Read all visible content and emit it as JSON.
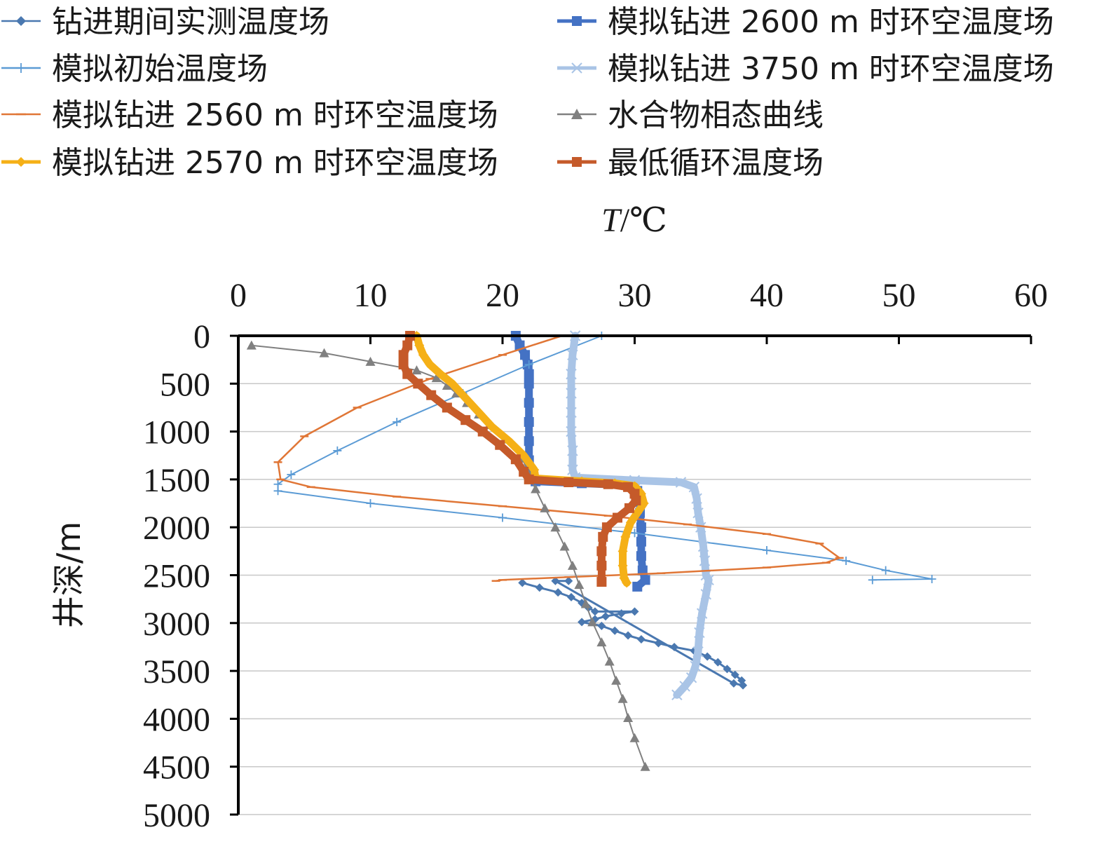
{
  "chart_data": {
    "type": "line",
    "title": "",
    "xlabel": "T/℃",
    "xlabel_parts": {
      "italic": "T",
      "rest": "/℃"
    },
    "ylabel": "井深/m",
    "xlim": [
      0,
      60
    ],
    "ylim": [
      0,
      5000
    ],
    "y_inverted": true,
    "x_axis_position": "top",
    "grid": "horizontal",
    "x_ticks": [
      "0",
      "10",
      "20",
      "30",
      "40",
      "50",
      "60"
    ],
    "y_ticks": [
      "0",
      "500",
      "1000",
      "1500",
      "2000",
      "2500",
      "3000",
      "3500",
      "4000",
      "4500",
      "5000"
    ],
    "legend_position": "top",
    "series": [
      {
        "name": "钻进期间实测温度场",
        "color": "#4a78b0",
        "marker": "diamond",
        "points": [
          [
            21.5,
            2580
          ],
          [
            22.8,
            2630
          ],
          [
            24.2,
            2680
          ],
          [
            25.2,
            2730
          ],
          [
            26.0,
            2790
          ],
          [
            26.5,
            2840
          ],
          [
            27.0,
            2880
          ],
          [
            30.0,
            2880
          ],
          [
            29.0,
            2900
          ],
          [
            27.8,
            2930
          ],
          [
            27.0,
            2960
          ],
          [
            26.0,
            2990
          ],
          [
            27.5,
            3030
          ],
          [
            28.5,
            3080
          ],
          [
            29.5,
            3130
          ],
          [
            30.5,
            3170
          ],
          [
            31.8,
            3210
          ],
          [
            33.0,
            3250
          ],
          [
            34.5,
            3290
          ],
          [
            35.5,
            3350
          ],
          [
            36.3,
            3410
          ],
          [
            37.0,
            3480
          ],
          [
            37.6,
            3540
          ],
          [
            38.1,
            3600
          ],
          [
            38.2,
            3650
          ],
          [
            37.5,
            3630
          ],
          [
            24.0,
            2560
          ],
          [
            25.0,
            2560
          ]
        ]
      },
      {
        "name": "模拟钻进 2600 m 时环空温度场",
        "color": "#4472c4",
        "marker": "square",
        "points": [
          [
            21.0,
            0
          ],
          [
            21.3,
            100
          ],
          [
            21.7,
            200
          ],
          [
            21.9,
            300
          ],
          [
            22.0,
            400
          ],
          [
            22.0,
            500
          ],
          [
            22.0,
            700
          ],
          [
            22.0,
            900
          ],
          [
            22.0,
            1100
          ],
          [
            22.0,
            1300
          ],
          [
            22.0,
            1450
          ],
          [
            22.5,
            1520
          ],
          [
            26.0,
            1540
          ],
          [
            29.5,
            1560
          ],
          [
            30.2,
            1620
          ],
          [
            30.4,
            1700
          ],
          [
            30.4,
            1850
          ],
          [
            30.5,
            2000
          ],
          [
            30.5,
            2150
          ],
          [
            30.5,
            2300
          ],
          [
            30.6,
            2450
          ],
          [
            30.8,
            2550
          ],
          [
            30.2,
            2620
          ]
        ]
      },
      {
        "name": "模拟初始温度场",
        "color": "#5b9bd5",
        "marker": "plus",
        "points": [
          [
            27.5,
            0
          ],
          [
            22.0,
            300
          ],
          [
            17.0,
            600
          ],
          [
            12.0,
            900
          ],
          [
            7.5,
            1200
          ],
          [
            4.0,
            1450
          ],
          [
            3.0,
            1550
          ],
          [
            3.0,
            1620
          ],
          [
            10.0,
            1750
          ],
          [
            20.0,
            1900
          ],
          [
            30.0,
            2060
          ],
          [
            40.0,
            2240
          ],
          [
            46.0,
            2350
          ],
          [
            49.0,
            2450
          ],
          [
            52.5,
            2540
          ],
          [
            48.0,
            2550
          ]
        ]
      },
      {
        "name": "模拟钻进 3750 m 时环空温度场",
        "color": "#a9c4e6",
        "marker": "cross",
        "points": [
          [
            25.5,
            0
          ],
          [
            25.3,
            200
          ],
          [
            25.2,
            400
          ],
          [
            25.2,
            600
          ],
          [
            25.2,
            800
          ],
          [
            25.2,
            1000
          ],
          [
            25.3,
            1200
          ],
          [
            25.3,
            1400
          ],
          [
            25.5,
            1480
          ],
          [
            30.0,
            1510
          ],
          [
            33.5,
            1530
          ],
          [
            34.5,
            1580
          ],
          [
            34.7,
            1700
          ],
          [
            34.8,
            1850
          ],
          [
            35.0,
            2000
          ],
          [
            35.2,
            2200
          ],
          [
            35.3,
            2350
          ],
          [
            35.4,
            2500
          ],
          [
            35.6,
            2550
          ],
          [
            35.4,
            2700
          ],
          [
            35.1,
            2900
          ],
          [
            34.9,
            3100
          ],
          [
            34.8,
            3300
          ],
          [
            34.6,
            3450
          ],
          [
            34.3,
            3570
          ],
          [
            33.8,
            3660
          ],
          [
            33.2,
            3750
          ]
        ]
      },
      {
        "name": "模拟钻进 2560 m 时环空温度场",
        "color": "#e07636",
        "marker": "dash",
        "points": [
          [
            24.5,
            0
          ],
          [
            20.0,
            200
          ],
          [
            14.5,
            450
          ],
          [
            9.0,
            750
          ],
          [
            5.0,
            1050
          ],
          [
            3.0,
            1320
          ],
          [
            3.2,
            1500
          ],
          [
            5.5,
            1580
          ],
          [
            12.0,
            1680
          ],
          [
            20.0,
            1780
          ],
          [
            28.0,
            1880
          ],
          [
            34.0,
            1970
          ],
          [
            40.0,
            2070
          ],
          [
            44.0,
            2170
          ],
          [
            45.5,
            2320
          ],
          [
            44.5,
            2370
          ],
          [
            40.0,
            2420
          ],
          [
            32.0,
            2480
          ],
          [
            25.0,
            2520
          ],
          [
            20.0,
            2550
          ],
          [
            19.5,
            2560
          ]
        ]
      },
      {
        "name": "水合物相态曲线",
        "color": "#808080",
        "marker": "triangle",
        "points": [
          [
            1.0,
            100
          ],
          [
            6.5,
            180
          ],
          [
            10.0,
            270
          ],
          [
            13.5,
            360
          ],
          [
            15.0,
            440
          ],
          [
            15.8,
            520
          ],
          [
            16.5,
            600
          ],
          [
            17.3,
            700
          ],
          [
            18.2,
            820
          ],
          [
            19.0,
            930
          ],
          [
            20.2,
            1080
          ],
          [
            21.5,
            1280
          ],
          [
            22.0,
            1450
          ],
          [
            22.5,
            1600
          ],
          [
            23.2,
            1800
          ],
          [
            24.0,
            2000
          ],
          [
            24.7,
            2200
          ],
          [
            25.3,
            2400
          ],
          [
            25.8,
            2600
          ],
          [
            26.3,
            2800
          ],
          [
            26.8,
            2990
          ],
          [
            27.5,
            3200
          ],
          [
            28.1,
            3400
          ],
          [
            28.6,
            3600
          ],
          [
            29.1,
            3790
          ],
          [
            29.5,
            3990
          ],
          [
            30.0,
            4200
          ],
          [
            30.8,
            4500
          ]
        ]
      },
      {
        "name": "模拟钻进 2570 m 时环空温度场",
        "color": "#f5b017",
        "marker": "diamond",
        "points": [
          [
            13.5,
            0
          ],
          [
            13.7,
            100
          ],
          [
            14.0,
            200
          ],
          [
            14.5,
            300
          ],
          [
            15.3,
            400
          ],
          [
            16.2,
            500
          ],
          [
            17.2,
            650
          ],
          [
            18.2,
            800
          ],
          [
            19.2,
            950
          ],
          [
            20.5,
            1100
          ],
          [
            21.6,
            1250
          ],
          [
            22.4,
            1400
          ],
          [
            22.5,
            1490
          ],
          [
            26.0,
            1520
          ],
          [
            28.5,
            1540
          ],
          [
            30.0,
            1570
          ],
          [
            30.5,
            1650
          ],
          [
            30.7,
            1750
          ],
          [
            30.2,
            1850
          ],
          [
            29.7,
            1950
          ],
          [
            29.3,
            2100
          ],
          [
            29.1,
            2250
          ],
          [
            29.1,
            2400
          ],
          [
            29.2,
            2530
          ],
          [
            29.4,
            2580
          ]
        ]
      },
      {
        "name": "最低循环温度场",
        "color": "#c55a2a",
        "marker": "square",
        "points": [
          [
            13.0,
            0
          ],
          [
            12.8,
            100
          ],
          [
            12.5,
            200
          ],
          [
            12.5,
            300
          ],
          [
            12.8,
            400
          ],
          [
            13.6,
            500
          ],
          [
            14.6,
            620
          ],
          [
            15.8,
            750
          ],
          [
            17.2,
            880
          ],
          [
            18.5,
            1000
          ],
          [
            19.8,
            1140
          ],
          [
            21.0,
            1290
          ],
          [
            21.6,
            1420
          ],
          [
            22.0,
            1500
          ],
          [
            25.0,
            1530
          ],
          [
            28.0,
            1550
          ],
          [
            29.5,
            1580
          ],
          [
            30.0,
            1650
          ],
          [
            30.1,
            1720
          ],
          [
            29.6,
            1800
          ],
          [
            28.7,
            1900
          ],
          [
            27.9,
            2000
          ],
          [
            27.6,
            2100
          ],
          [
            27.5,
            2250
          ],
          [
            27.5,
            2400
          ],
          [
            27.5,
            2570
          ]
        ]
      }
    ]
  }
}
